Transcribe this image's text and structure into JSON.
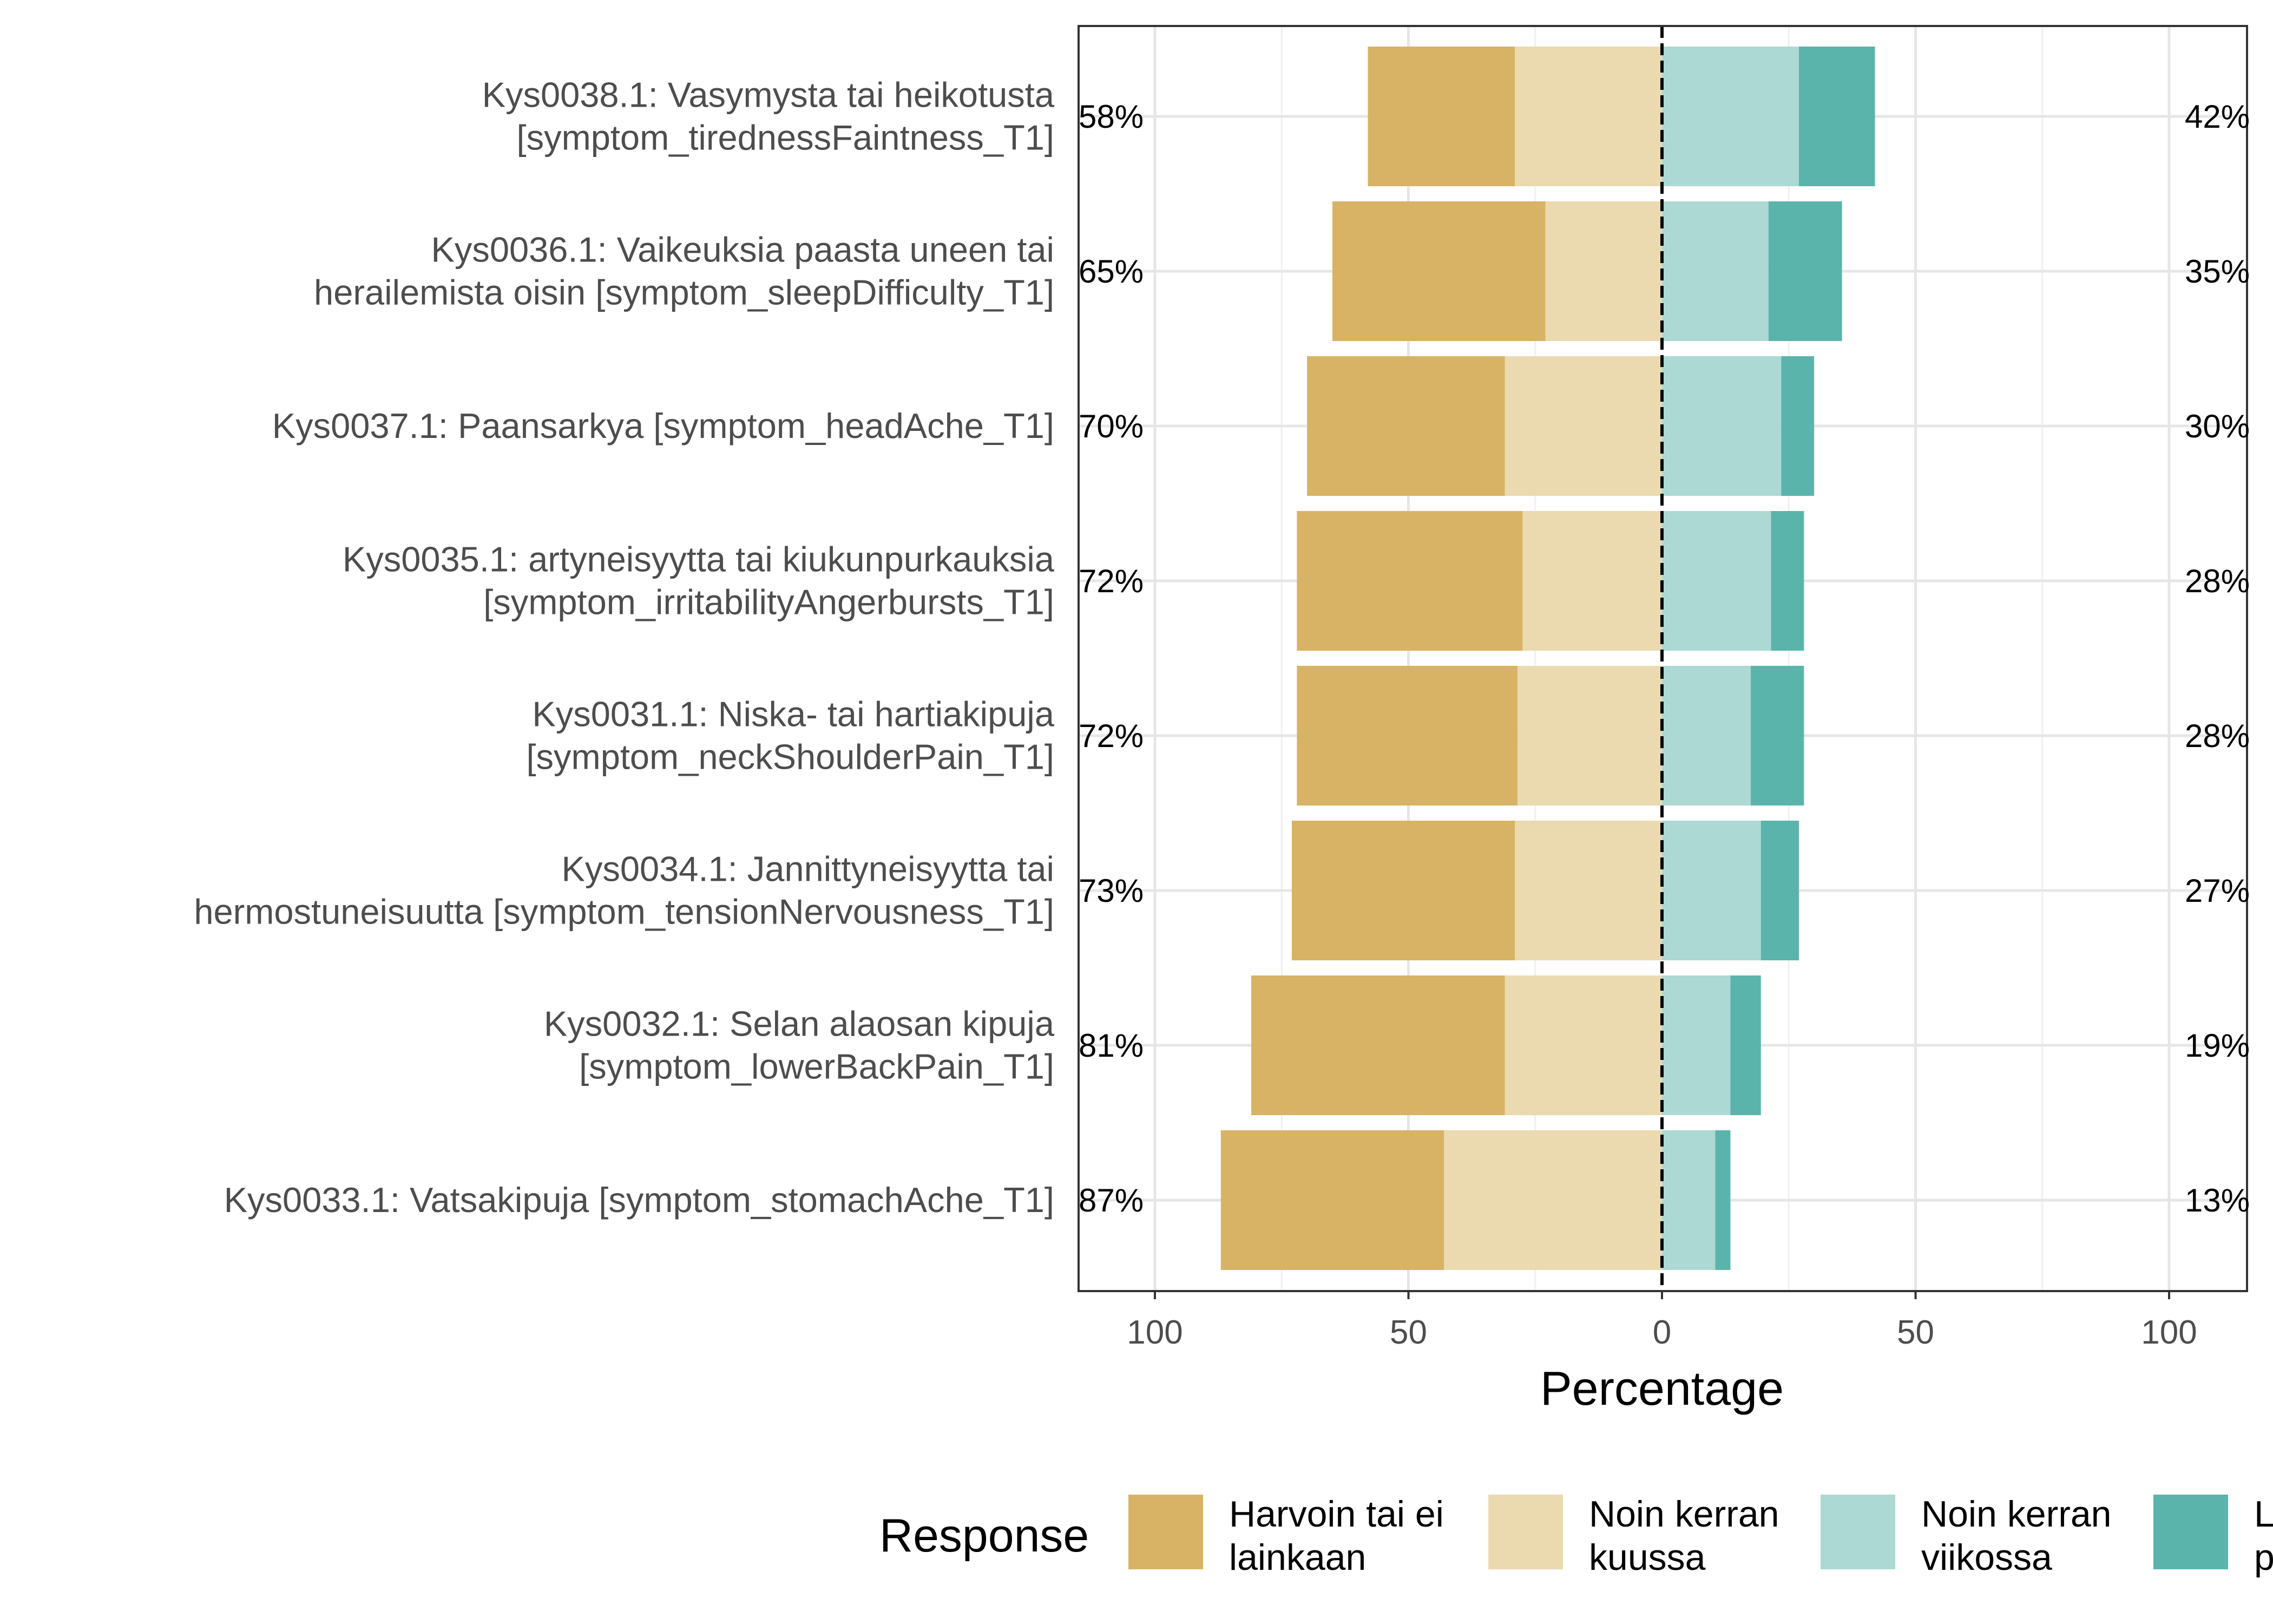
{
  "chart_data": {
    "type": "bar",
    "orientation": "horizontal-diverging",
    "xlabel": "Percentage",
    "xticks": [
      "100",
      "50",
      "0",
      "50",
      "100"
    ],
    "xlim": [
      -100,
      100
    ],
    "grid": true,
    "legend": {
      "title": "Response",
      "position": "bottom",
      "entries": [
        {
          "key": "harvoin",
          "label_lines": [
            "Harvoin tai ei",
            "lainkaan"
          ],
          "color": "#d8b365"
        },
        {
          "key": "kuussa",
          "label_lines": [
            "Noin kerran",
            "kuussa"
          ],
          "color": "#ebdab0"
        },
        {
          "key": "viikossa",
          "label_lines": [
            "Noin kerran",
            "viikossa"
          ],
          "color": "#acd9d3"
        },
        {
          "key": "paivittain",
          "label_lines": [
            "L",
            "p"
          ],
          "color": "#5ab4ac"
        }
      ]
    },
    "categories": [
      {
        "label_lines": [
          "Kys0038.1: Vasymysta tai heikotusta",
          "[symptom_tirednessFaintness_T1]"
        ],
        "left_pct": "58%",
        "right_pct": "42%"
      },
      {
        "label_lines": [
          "Kys0036.1: Vaikeuksia paasta uneen tai",
          "herailemista oisin [symptom_sleepDifficulty_T1]"
        ],
        "left_pct": "65%",
        "right_pct": "35%"
      },
      {
        "label_lines": [
          "Kys0037.1: Paansarkya [symptom_headAche_T1]"
        ],
        "left_pct": "70%",
        "right_pct": "30%"
      },
      {
        "label_lines": [
          "Kys0035.1: artyneisyytta tai kiukunpurkauksia",
          "[symptom_irritabilityAngerbursts_T1]"
        ],
        "left_pct": "72%",
        "right_pct": "28%"
      },
      {
        "label_lines": [
          "Kys0031.1: Niska- tai hartiakipuja",
          "[symptom_neckShoulderPain_T1]"
        ],
        "left_pct": "72%",
        "right_pct": "28%"
      },
      {
        "label_lines": [
          "Kys0034.1: Jannittyneisyytta tai",
          "hermostuneisuutta [symptom_tensionNervousness_T1]"
        ],
        "left_pct": "73%",
        "right_pct": "27%"
      },
      {
        "label_lines": [
          "Kys0032.1: Selan alaosan kipuja",
          "[symptom_lowerBackPain_T1]"
        ],
        "left_pct": "81%",
        "right_pct": "19%"
      },
      {
        "label_lines": [
          "Kys0033.1: Vatsakipuja [symptom_stomachAche_T1]"
        ],
        "left_pct": "87%",
        "right_pct": "13%"
      }
    ],
    "series": [
      {
        "key": "harvoin",
        "side": "negative",
        "values": [
          29,
          42,
          39,
          44.5,
          43.5,
          44,
          50,
          44
        ]
      },
      {
        "key": "kuussa",
        "side": "negative",
        "values": [
          29,
          23,
          31,
          27.5,
          28.5,
          29,
          31,
          43
        ]
      },
      {
        "key": "viikossa",
        "side": "positive",
        "values": [
          27,
          21,
          23.5,
          21.5,
          17.5,
          19.5,
          13.5,
          10.5
        ]
      },
      {
        "key": "paivittain",
        "side": "positive",
        "values": [
          15,
          14.5,
          6.5,
          6.5,
          10.5,
          7.5,
          6,
          3
        ]
      }
    ]
  }
}
